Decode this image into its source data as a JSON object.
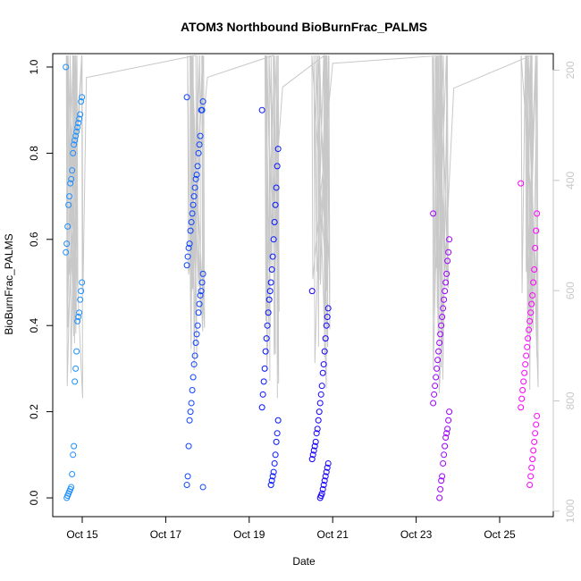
{
  "chart_data": {
    "type": "scatter",
    "title": "ATOM3 Northbound BioBurnFrac_PALMS",
    "xlabel": "Date",
    "ylabel": "BioBurnFrac_PALMS",
    "x_ticks": [
      "Oct 15",
      "Oct 17",
      "Oct 19",
      "Oct 21",
      "Oct 23",
      "Oct 25"
    ],
    "y_ticks": [
      "0.0",
      "0.2",
      "0.4",
      "0.6",
      "0.8",
      "1.0"
    ],
    "y2_ticks": [
      "200",
      "400",
      "600",
      "800",
      "1000"
    ],
    "ylim": [
      0,
      1.02
    ],
    "y2lim": [
      1010,
      170
    ],
    "marker": "open-circle",
    "point_color_gradient": [
      "#1e90ff",
      "#0000ff",
      "#ff00ff"
    ],
    "overlay_line_color": "#c8c8c8",
    "groups": [
      {
        "date": "Oct 14.8",
        "y": [
          1.0,
          0.93,
          0.92,
          0.89,
          0.88,
          0.87,
          0.86,
          0.85,
          0.84,
          0.83,
          0.82,
          0.8,
          0.76,
          0.74,
          0.73,
          0.7,
          0.68,
          0.63,
          0.59,
          0.57,
          0.5,
          0.48,
          0.46,
          0.43,
          0.42,
          0.41,
          0.34,
          0.3,
          0.27,
          0.12,
          0.1,
          0.055,
          0.025,
          0.02,
          0.015,
          0.01,
          0.005,
          0.0
        ]
      },
      {
        "date": "Oct 17.7",
        "y": [
          0.93,
          0.92,
          0.9,
          0.9,
          0.84,
          0.82,
          0.8,
          0.77,
          0.75,
          0.74,
          0.72,
          0.7,
          0.68,
          0.66,
          0.64,
          0.62,
          0.59,
          0.58,
          0.56,
          0.54,
          0.52,
          0.5,
          0.48,
          0.47,
          0.45,
          0.43,
          0.4,
          0.38,
          0.36,
          0.33,
          0.31,
          0.28,
          0.25,
          0.22,
          0.2,
          0.18,
          0.12,
          0.05,
          0.03,
          0.025
        ]
      },
      {
        "date": "Oct 19.5",
        "y": [
          0.9,
          0.81,
          0.77,
          0.72,
          0.68,
          0.64,
          0.6,
          0.56,
          0.53,
          0.5,
          0.48,
          0.46,
          0.43,
          0.4,
          0.37,
          0.34,
          0.3,
          0.27,
          0.24,
          0.21,
          0.18,
          0.15,
          0.13,
          0.1,
          0.08,
          0.06,
          0.05,
          0.04,
          0.03
        ]
      },
      {
        "date": "Oct 20.7",
        "y": [
          0.48,
          0.44,
          0.42,
          0.4,
          0.37,
          0.34,
          0.31,
          0.29,
          0.26,
          0.24,
          0.22,
          0.2,
          0.18,
          0.16,
          0.15,
          0.13,
          0.12,
          0.11,
          0.1,
          0.09,
          0.08,
          0.07,
          0.06,
          0.05,
          0.04,
          0.03,
          0.02,
          0.01,
          0.005,
          0.0
        ]
      },
      {
        "date": "Oct 23.6",
        "y": [
          0.66,
          0.6,
          0.57,
          0.55,
          0.52,
          0.5,
          0.48,
          0.46,
          0.44,
          0.42,
          0.4,
          0.38,
          0.36,
          0.34,
          0.32,
          0.3,
          0.28,
          0.26,
          0.24,
          0.22,
          0.2,
          0.18,
          0.16,
          0.15,
          0.14,
          0.12,
          0.1,
          0.08,
          0.05,
          0.04,
          0.02,
          0.0
        ]
      },
      {
        "date": "Oct 25.7",
        "y": [
          0.73,
          0.66,
          0.62,
          0.58,
          0.53,
          0.5,
          0.47,
          0.45,
          0.43,
          0.41,
          0.39,
          0.37,
          0.35,
          0.33,
          0.31,
          0.29,
          0.27,
          0.25,
          0.23,
          0.21,
          0.19,
          0.17,
          0.15,
          0.13,
          0.11,
          0.09,
          0.07,
          0.05,
          0.03
        ]
      }
    ]
  }
}
